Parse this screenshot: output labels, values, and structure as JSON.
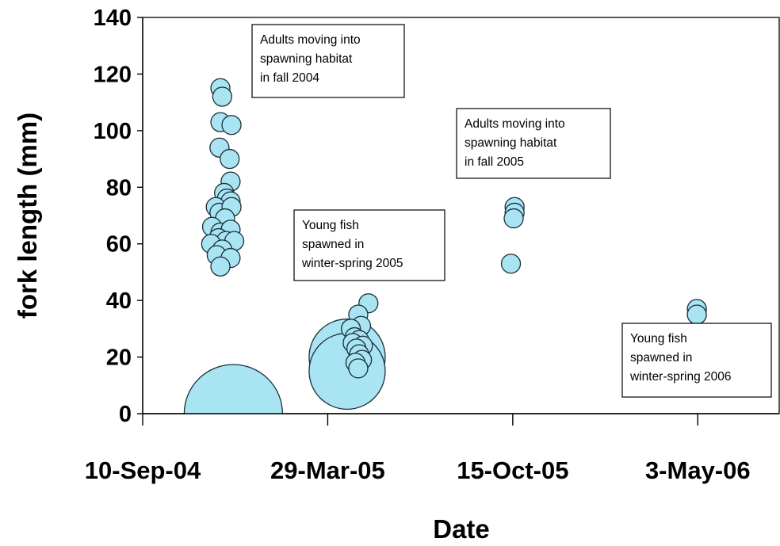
{
  "chart_data": {
    "type": "scatter",
    "xlabel": "Date",
    "ylabel": "fork length (mm)",
    "xticks": [
      "10-Sep-04",
      "29-Mar-05",
      "15-Oct-05",
      "3-May-06"
    ],
    "xlim": [
      "10-Sep-04",
      "30-Jul-06"
    ],
    "ylim": [
      0,
      140
    ],
    "yticks": [
      "0",
      "20",
      "40",
      "60",
      "80",
      "100",
      "120",
      "140"
    ],
    "grid": false,
    "annotations": [
      {
        "id": "adults-2004",
        "lines": [
          "Adults moving into",
          "spawning habitat",
          "in fall 2004"
        ]
      },
      {
        "id": "adults-2005",
        "lines": [
          "Adults moving into",
          "spawning habitat",
          "in fall 2005"
        ]
      },
      {
        "id": "young-2005",
        "lines": [
          "Young fish",
          "spawned in",
          "winter-spring 2005"
        ]
      },
      {
        "id": "young-2006",
        "lines": [
          "Young fish",
          "spawned in",
          "winter-spring 2006"
        ]
      }
    ],
    "large_bubbles": [
      {
        "x": "17-Dec-04",
        "y": 0,
        "size": "large"
      },
      {
        "x": "19-Apr-05",
        "y": 20,
        "size": "large"
      },
      {
        "x": "19-Apr-05",
        "y": 15,
        "size": "large"
      }
    ],
    "points": [
      {
        "x": "3-Dec-04",
        "y": 115
      },
      {
        "x": "5-Dec-04",
        "y": 112
      },
      {
        "x": "3-Dec-04",
        "y": 103
      },
      {
        "x": "15-Dec-04",
        "y": 102
      },
      {
        "x": "2-Dec-04",
        "y": 94
      },
      {
        "x": "13-Dec-04",
        "y": 90
      },
      {
        "x": "14-Dec-04",
        "y": 82
      },
      {
        "x": "7-Dec-04",
        "y": 78
      },
      {
        "x": "10-Dec-04",
        "y": 76
      },
      {
        "x": "14-Dec-04",
        "y": 75
      },
      {
        "x": "28-Nov-04",
        "y": 73
      },
      {
        "x": "2-Dec-04",
        "y": 71
      },
      {
        "x": "15-Dec-04",
        "y": 73
      },
      {
        "x": "8-Dec-04",
        "y": 69
      },
      {
        "x": "24-Nov-04",
        "y": 66
      },
      {
        "x": "3-Dec-04",
        "y": 64
      },
      {
        "x": "14-Dec-04",
        "y": 65
      },
      {
        "x": "1-Dec-04",
        "y": 62
      },
      {
        "x": "9-Dec-04",
        "y": 61
      },
      {
        "x": "18-Dec-04",
        "y": 61
      },
      {
        "x": "23-Nov-04",
        "y": 60
      },
      {
        "x": "5-Dec-04",
        "y": 58
      },
      {
        "x": "29-Nov-04",
        "y": 56
      },
      {
        "x": "14-Dec-04",
        "y": 55
      },
      {
        "x": "3-Dec-04",
        "y": 52
      },
      {
        "x": "12-May-05",
        "y": 39
      },
      {
        "x": "1-May-05",
        "y": 35
      },
      {
        "x": "4-May-05",
        "y": 31
      },
      {
        "x": "23-Apr-05",
        "y": 30
      },
      {
        "x": "27-Apr-05",
        "y": 27
      },
      {
        "x": "2-May-05",
        "y": 26
      },
      {
        "x": "25-Apr-05",
        "y": 25
      },
      {
        "x": "6-May-05",
        "y": 24
      },
      {
        "x": "29-Apr-05",
        "y": 23
      },
      {
        "x": "2-May-05",
        "y": 21
      },
      {
        "x": "5-May-05",
        "y": 19
      },
      {
        "x": "28-Apr-05",
        "y": 18
      },
      {
        "x": "1-May-05",
        "y": 16
      },
      {
        "x": "17-Oct-05",
        "y": 73
      },
      {
        "x": "17-Oct-05",
        "y": 71
      },
      {
        "x": "16-Oct-05",
        "y": 69
      },
      {
        "x": "13-Oct-05",
        "y": 53
      },
      {
        "x": "2-May-06",
        "y": 37
      },
      {
        "x": "2-May-06",
        "y": 35
      }
    ]
  }
}
